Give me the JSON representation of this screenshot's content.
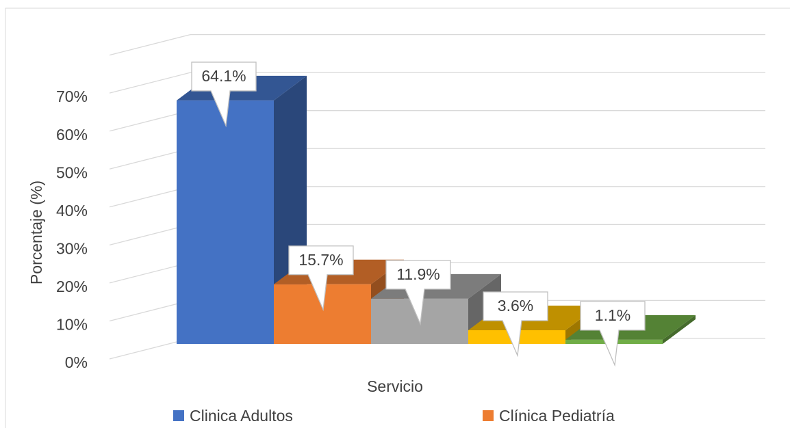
{
  "chart_data": {
    "type": "bar",
    "xlabel": "Servicio",
    "ylabel": "Porcentaje (%)",
    "series": [
      {
        "name": "Clinica Adultos",
        "color": "#4472c4",
        "values": [
          64.1
        ],
        "value_labels": [
          "64.1%"
        ]
      },
      {
        "name": "Clínica Pediatría",
        "color": "#ed7d31",
        "values": [
          15.7
        ],
        "value_labels": [
          "15.7%"
        ]
      },
      {
        "name": null,
        "color": "#a5a5a5",
        "values": [
          11.9
        ],
        "value_labels": [
          "11.9%"
        ]
      },
      {
        "name": null,
        "color": "#ffc000",
        "values": [
          3.6
        ],
        "value_labels": [
          "3.6%"
        ]
      },
      {
        "name": null,
        "color": "#70ad47",
        "values": [
          1.1
        ],
        "value_labels": [
          "1.1%"
        ]
      }
    ],
    "ylim": [
      0,
      80
    ],
    "yticks": [
      {
        "value": 0,
        "label": "0%"
      },
      {
        "value": 10,
        "label": "10%"
      },
      {
        "value": 20,
        "label": "20%"
      },
      {
        "value": 30,
        "label": "30%"
      },
      {
        "value": 40,
        "label": "40%"
      },
      {
        "value": 50,
        "label": "50%"
      },
      {
        "value": 60,
        "label": "60%"
      },
      {
        "value": 70,
        "label": "70%"
      }
    ],
    "grid": true
  }
}
